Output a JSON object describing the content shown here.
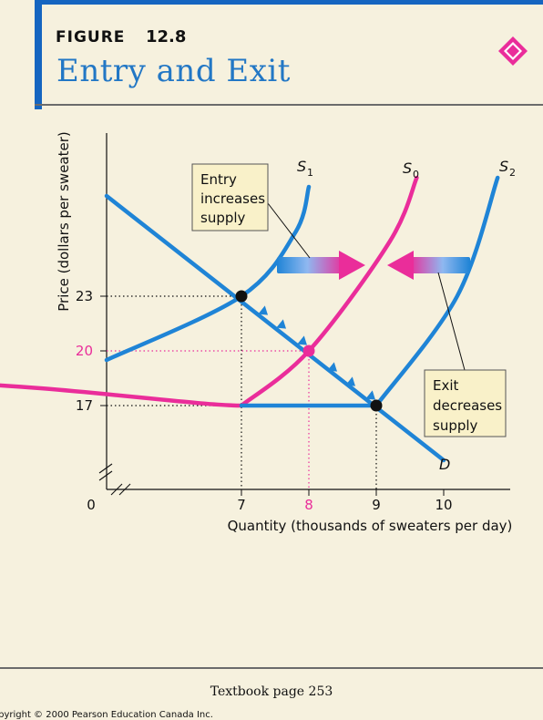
{
  "header": {
    "figure_label": "FIGURE",
    "figure_number": "12.8",
    "title": "Entry and Exit"
  },
  "footer": {
    "textbook_page": "Textbook page 253",
    "copyright": "opyright © 2000 Pearson Education Canada Inc."
  },
  "colors": {
    "blue": "#1f84d6",
    "magenta": "#ea2d9a",
    "frame_blue": "#1565c0",
    "annotation_bg": "#f9f1c9"
  },
  "chart_data": {
    "type": "line",
    "xlabel": "Quantity (thousands of sweaters per day)",
    "ylabel": "Price (dollars per sweater)",
    "xlim": [
      0,
      11
    ],
    "ylim": [
      0,
      33
    ],
    "x_ticks": [
      {
        "value": 0,
        "label": "0",
        "color": "#111111"
      },
      {
        "value": 7,
        "label": "7",
        "color": "#111111"
      },
      {
        "value": 8,
        "label": "8",
        "color": "#ea2d9a"
      },
      {
        "value": 9,
        "label": "9",
        "color": "#111111"
      },
      {
        "value": 10,
        "label": "10",
        "color": "#111111"
      }
    ],
    "y_ticks": [
      {
        "value": 17,
        "label": "17",
        "color": "#111111"
      },
      {
        "value": 20,
        "label": "20",
        "color": "#ea2d9a"
      },
      {
        "value": 23,
        "label": "23",
        "color": "#111111"
      }
    ],
    "series": [
      {
        "name": "D",
        "color": "#1f84d6",
        "points": [
          [
            5,
            28.5
          ],
          [
            10.0,
            14.0
          ]
        ]
      },
      {
        "name": "S1",
        "color": "#1f84d6",
        "points": [
          [
            5.0,
            19.5
          ],
          [
            7.0,
            23.0
          ],
          [
            7.8,
            26.5
          ],
          [
            8.0,
            29.0
          ]
        ]
      },
      {
        "name": "S0",
        "color": "#ea2d9a",
        "points": [
          [
            7.0,
            17.0
          ],
          [
            8.0,
            20.0
          ],
          [
            9.2,
            26.0
          ],
          [
            9.6,
            29.5
          ]
        ]
      },
      {
        "name": "S2",
        "color": "#1f84d6",
        "points": [
          [
            9.0,
            17.0
          ],
          [
            10.2,
            23.0
          ],
          [
            10.8,
            29.5
          ]
        ]
      },
      {
        "name": "",
        "color": "#ea2d9a",
        "points": [
          [
            0.2,
            0
          ],
          [
            0.2,
            17.0
          ],
          [
            7.0,
            17.0
          ]
        ]
      },
      {
        "name": "",
        "color": "#1f84d6",
        "points": [
          [
            7.0,
            17.0
          ],
          [
            9.0,
            17.0
          ]
        ]
      }
    ],
    "equilibria": [
      {
        "x": 7,
        "y": 23,
        "color": "#111111"
      },
      {
        "x": 8,
        "y": 20,
        "color": "#ea2d9a"
      },
      {
        "x": 9,
        "y": 17,
        "color": "#111111"
      }
    ],
    "guides": [
      {
        "x": 7,
        "y": 23,
        "color": "#111111"
      },
      {
        "x": 8,
        "y": 20,
        "color": "#ea2d9a"
      },
      {
        "x": 9,
        "y": 17,
        "color": "#111111"
      }
    ],
    "annotations": [
      {
        "lines": [
          "Entry",
          "increases",
          "supply"
        ]
      },
      {
        "lines": [
          "Exit",
          "decreases",
          "supply"
        ]
      }
    ]
  }
}
